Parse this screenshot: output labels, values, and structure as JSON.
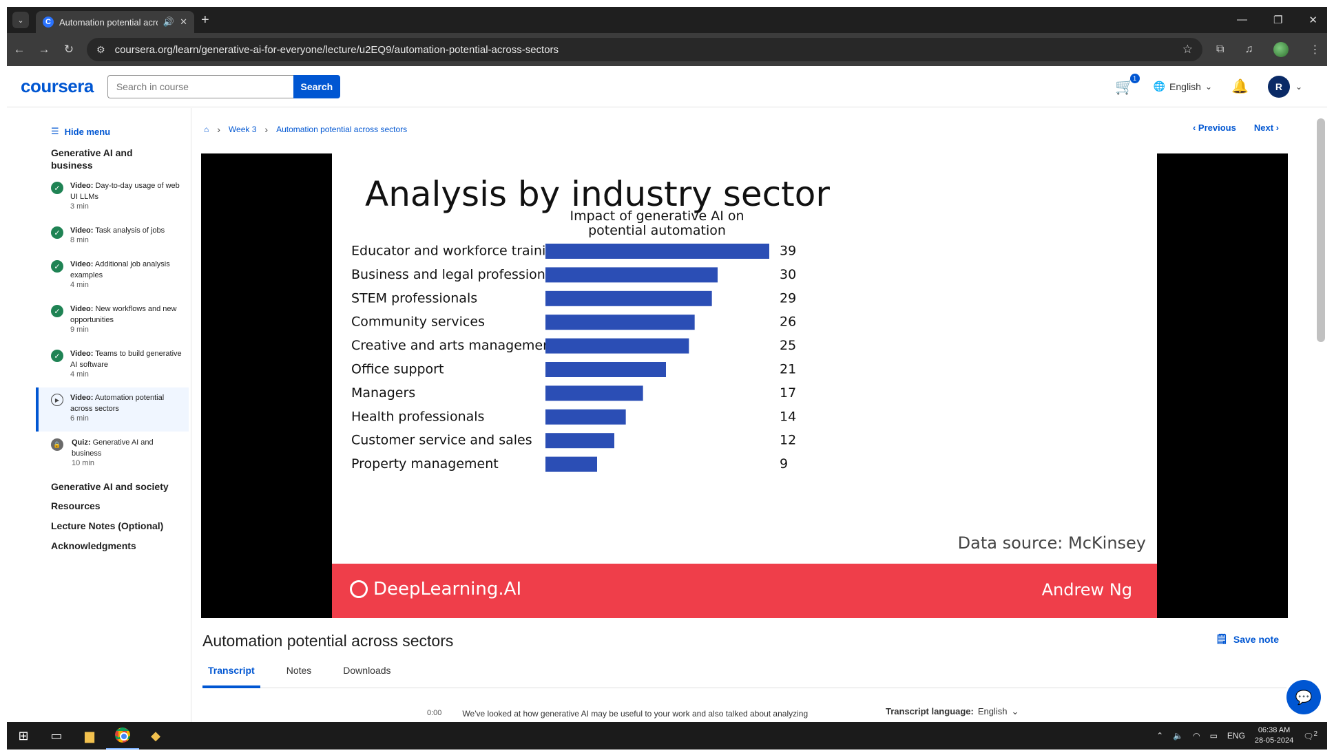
{
  "browser": {
    "tab_title": "Automation potential acros",
    "url": "coursera.org/learn/generative-ai-for-everyone/lecture/u2EQ9/automation-potential-across-sectors"
  },
  "header": {
    "logo": "coursera",
    "search_placeholder": "Search in course",
    "search_button": "Search",
    "cart_count": "1",
    "language": "English",
    "avatar_initial": "R"
  },
  "sidebar": {
    "hide_menu": "Hide menu",
    "section_title": "Generative AI and business",
    "items": [
      {
        "type": "Video:",
        "title": "Day-to-day usage of web UI LLMs",
        "duration": "3 min"
      },
      {
        "type": "Video:",
        "title": "Task analysis of jobs",
        "duration": "8 min"
      },
      {
        "type": "Video:",
        "title": "Additional job analysis examples",
        "duration": "4 min"
      },
      {
        "type": "Video:",
        "title": "New workflows and new opportunities",
        "duration": "9 min"
      },
      {
        "type": "Video:",
        "title": "Teams to build generative AI software",
        "duration": "4 min"
      },
      {
        "type": "Video:",
        "title": "Automation potential across sectors",
        "duration": "6 min"
      },
      {
        "type": "Quiz:",
        "title": "Generative AI and business",
        "duration": "10 min"
      }
    ],
    "other_sections": [
      "Generative AI and society",
      "Resources",
      "Lecture Notes (Optional)",
      "Acknowledgments"
    ]
  },
  "breadcrumb": {
    "week": "Week 3",
    "page": "Automation potential across sectors"
  },
  "nav": {
    "previous": "Previous",
    "next": "Next"
  },
  "slide": {
    "title": "Analysis by industry sector",
    "source": "Data source: McKinsey",
    "brand": "DeepLearning.AI",
    "instructor": "Andrew Ng"
  },
  "chart_data": {
    "type": "bar",
    "orientation": "horizontal",
    "title": "Impact of generative AI on potential automation",
    "categories": [
      "Educator and workforce training",
      "Business and legal professions",
      "STEM professionals",
      "Community services",
      "Creative and arts management",
      "Office support",
      "Managers",
      "Health professionals",
      "Customer service and sales",
      "Property management"
    ],
    "values": [
      39,
      30,
      29,
      26,
      25,
      21,
      17,
      14,
      12,
      9
    ],
    "bar_color": "#2b4eb5",
    "grid": false
  },
  "lecture": {
    "title": "Automation potential across sectors",
    "save_note": "Save note",
    "tabs": [
      "Transcript",
      "Notes",
      "Downloads"
    ],
    "transcript_time": "0:00",
    "transcript_text": "We've looked at how generative AI may be useful to your work and also talked about analyzing",
    "transcript_language_label": "Transcript language:",
    "transcript_language": "English"
  },
  "taskbar": {
    "lang": "ENG",
    "time": "06:38 AM",
    "date": "28-05-2024",
    "notifications": "2"
  }
}
